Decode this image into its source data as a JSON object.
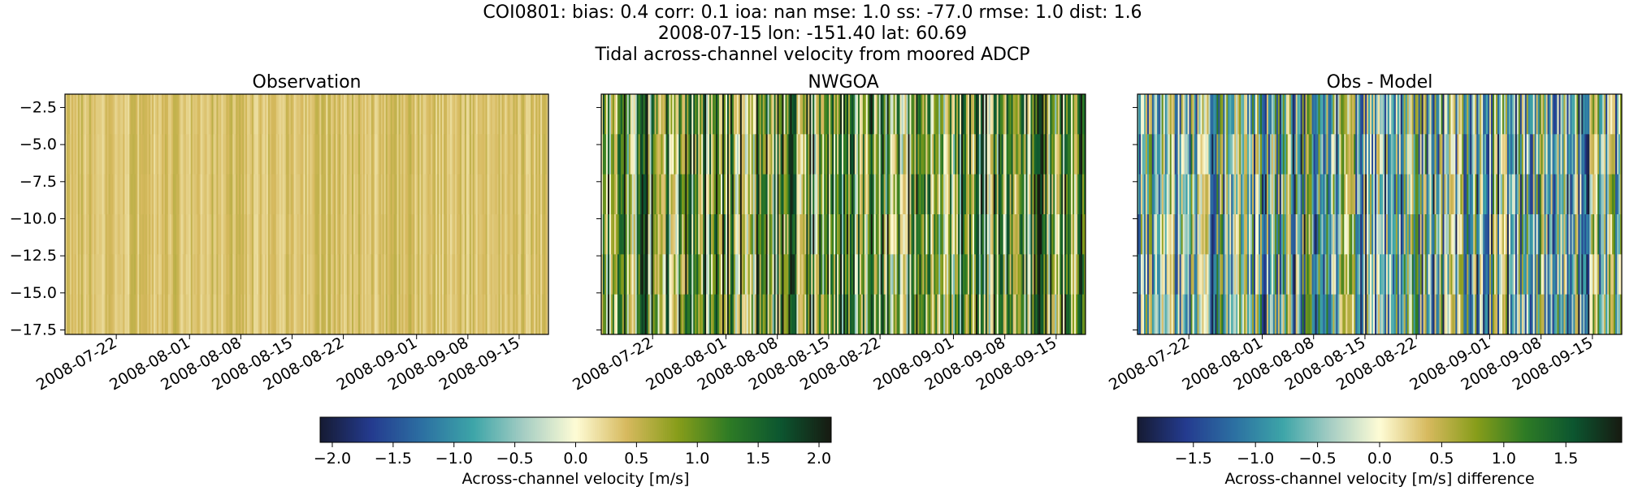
{
  "suptitle": {
    "line1": "COI0801: bias: 0.4  corr: 0.1  ioa: nan  mse: 1.0  ss: -77.0  rmse: 1.0  dist: 1.6",
    "line2": "2008-07-15 lon: -151.40 lat: 60.69",
    "line3": "Tidal across-channel velocity from moored ADCP"
  },
  "chart_data": [
    {
      "type": "heatmap",
      "title": "Observation",
      "ylabel": "",
      "x_ticks": [
        "2008-07-22",
        "2008-08-01",
        "2008-08-08",
        "2008-08-15",
        "2008-08-22",
        "2008-09-01",
        "2008-09-08",
        "2008-09-15"
      ],
      "y_ticks": [
        "-2.5",
        "-5.0",
        "-7.5",
        "-10.0",
        "-12.5",
        "-15.0",
        "-17.5"
      ],
      "xlim": [
        "2008-07-15",
        "2008-09-19"
      ],
      "ylim": [
        -17.8,
        -1.6
      ],
      "value_range": [
        0.2,
        0.55
      ],
      "colormap": "delta",
      "colorbar": "velocity"
    },
    {
      "type": "heatmap",
      "title": "NWGOA",
      "x_ticks": [
        "2008-07-22",
        "2008-08-01",
        "2008-08-08",
        "2008-08-15",
        "2008-08-22",
        "2008-09-01",
        "2008-09-08",
        "2008-09-15"
      ],
      "xlim": [
        "2008-07-15",
        "2008-09-19"
      ],
      "ylim": [
        -17.8,
        -1.6
      ],
      "value_range": [
        -0.3,
        2.1
      ],
      "colormap": "delta",
      "colorbar": "velocity"
    },
    {
      "type": "heatmap",
      "title": "Obs - Model",
      "x_ticks": [
        "2008-07-22",
        "2008-08-01",
        "2008-08-08",
        "2008-08-15",
        "2008-08-22",
        "2008-09-01",
        "2008-09-08",
        "2008-09-15"
      ],
      "xlim": [
        "2008-07-15",
        "2008-09-19"
      ],
      "ylim": [
        -17.8,
        -1.6
      ],
      "value_range": [
        -1.6,
        0.9
      ],
      "colormap": "delta",
      "colorbar": "difference"
    }
  ],
  "colorbars": {
    "velocity": {
      "label": "Across-channel velocity [m/s]",
      "range": [
        -2.1,
        2.1
      ],
      "ticks": [
        "-2.0",
        "-1.5",
        "-1.0",
        "-0.5",
        "0.0",
        "0.5",
        "1.0",
        "1.5",
        "2.0"
      ]
    },
    "difference": {
      "label": "Across-channel velocity [m/s] difference",
      "range": [
        -1.95,
        1.95
      ],
      "ticks": [
        "-1.5",
        "-1.0",
        "-0.5",
        "0.0",
        "0.5",
        "1.0",
        "1.5"
      ]
    }
  },
  "colormap_stops": [
    "#161b33",
    "#243b8f",
    "#2c70a2",
    "#3da5a8",
    "#a7cec4",
    "#fefcd5",
    "#d6b95e",
    "#879d1a",
    "#2e7b25",
    "#0c5630",
    "#171a11"
  ]
}
